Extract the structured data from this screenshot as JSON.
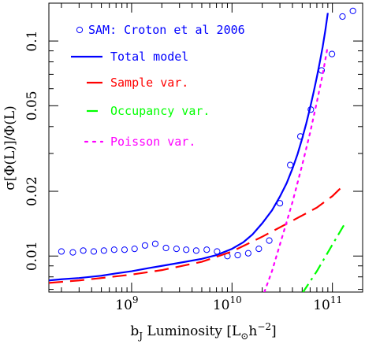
{
  "chart_data": {
    "type": "line",
    "xscale": "log",
    "yscale": "log",
    "xlim": [
      150000000.0,
      200000000000.0
    ],
    "ylim": [
      0.0068,
      0.15
    ],
    "grid": false,
    "legend_position": "top-left",
    "xlabel": {
      "main": "b",
      "sub": "J",
      "rest": " Luminosity [L",
      "sun_sub": "⊙",
      "tail": "h",
      "sup": "−2",
      "end": "]"
    },
    "ylabel": "σ[Φ(L)]/Φ(L)",
    "xticks": [
      {
        "value": 1000000000.0,
        "base": "10",
        "exp": "9"
      },
      {
        "value": 10000000000.0,
        "base": "10",
        "exp": "10"
      },
      {
        "value": 100000000000.0,
        "base": "10",
        "exp": "11"
      }
    ],
    "yticks": [
      {
        "value": 0.01,
        "label": "0.01"
      },
      {
        "value": 0.02,
        "label": "0.02"
      },
      {
        "value": 0.05,
        "label": "0.05"
      },
      {
        "value": 0.1,
        "label": "0.1"
      }
    ],
    "series": [
      {
        "name": "SAM: Croton et al 2006",
        "kind": "scatter",
        "color": "#0000ff",
        "x": [
          200000000.0,
          260000000.0,
          330000000.0,
          420000000.0,
          530000000.0,
          670000000.0,
          850000000.0,
          1070000000.0,
          1360000000.0,
          1720000000.0,
          2200000000.0,
          2800000000.0,
          3500000000.0,
          4400000000.0,
          5600000000.0,
          7100000000.0,
          9000000000.0,
          11400000000.0,
          14500000000.0,
          18500000000.0,
          23500000000.0,
          30000000000.0,
          38000000000.0,
          48000000000.0,
          61000000000.0,
          78000000000.0,
          99000000000.0,
          126000000000.0,
          160000000000.0
        ],
        "y": [
          0.0105,
          0.0104,
          0.0106,
          0.0105,
          0.0106,
          0.0107,
          0.0107,
          0.0108,
          0.0112,
          0.0114,
          0.0109,
          0.0108,
          0.0107,
          0.0106,
          0.0107,
          0.0105,
          0.01,
          0.0101,
          0.0103,
          0.0108,
          0.0118,
          0.0176,
          0.0265,
          0.036,
          0.048,
          0.073,
          0.087,
          0.13,
          0.138
        ]
      },
      {
        "name": "Total model",
        "kind": "line",
        "color": "#0000ff",
        "dash": "solid",
        "x": [
          150000000.0,
          200000000.0,
          300000000.0,
          500000000.0,
          700000000.0,
          1000000000.0,
          1500000000.0,
          2000000000.0,
          3000000000.0,
          5000000000.0,
          7000000000.0,
          10000000000.0,
          13000000000.0,
          16000000000.0,
          20000000000.0,
          25000000000.0,
          30000000000.0,
          35000000000.0,
          40000000000.0,
          45000000000.0,
          50000000000.0,
          55000000000.0,
          60000000000.0,
          65000000000.0,
          70000000000.0,
          75000000000.0,
          80000000000.0,
          85000000000.0,
          90000000000.0
        ],
        "y": [
          0.0077,
          0.0078,
          0.0079,
          0.0081,
          0.0083,
          0.0085,
          0.0088,
          0.009,
          0.0093,
          0.0097,
          0.0101,
          0.0108,
          0.0116,
          0.0126,
          0.0142,
          0.0163,
          0.0189,
          0.0218,
          0.0255,
          0.0298,
          0.0352,
          0.0415,
          0.049,
          0.0578,
          0.068,
          0.08,
          0.094,
          0.112,
          0.135
        ]
      },
      {
        "name": "Sample var.",
        "kind": "line",
        "color": "#ff0000",
        "dash": "long-dash",
        "x": [
          150000000.0,
          300000000.0,
          500000000.0,
          1000000000.0,
          2000000000.0,
          5000000000.0,
          10000000000.0,
          20000000000.0,
          40000000000.0,
          70000000000.0,
          100000000000.0,
          130000000000.0
        ],
        "y": [
          0.0075,
          0.0077,
          0.0079,
          0.0082,
          0.0086,
          0.0094,
          0.0105,
          0.0123,
          0.0146,
          0.0168,
          0.019,
          0.0214
        ]
      },
      {
        "name": "Occupancy var.",
        "kind": "line",
        "color": "#00ff00",
        "dash": "dash-dot",
        "x": [
          37000000000.0,
          50000000000.0,
          70000000000.0,
          100000000000.0,
          130000000000.0
        ],
        "y": [
          0.0055,
          0.0067,
          0.0085,
          0.0113,
          0.0139
        ]
      },
      {
        "name": "Poisson var.",
        "kind": "line",
        "color": "#ff00ff",
        "dash": "dotted",
        "x": [
          21000000000.0,
          25000000000.0,
          30000000000.0,
          35000000000.0,
          40000000000.0,
          50000000000.0,
          60000000000.0,
          70000000000.0,
          80000000000.0,
          90000000000.0
        ],
        "y": [
          0.0068,
          0.0085,
          0.0113,
          0.0144,
          0.0178,
          0.0265,
          0.0375,
          0.052,
          0.07,
          0.095
        ]
      }
    ]
  }
}
